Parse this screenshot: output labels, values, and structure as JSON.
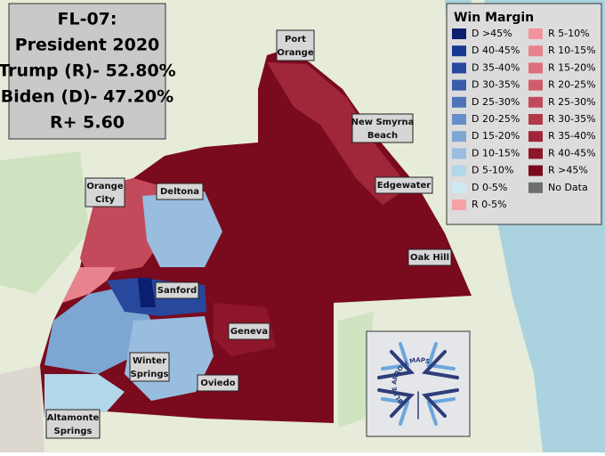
{
  "title_box": {
    "lines": [
      "FL-07:",
      "President 2020",
      "Trump (R)- 52.80%",
      "Biden (D)- 47.20%",
      "R+ 5.60"
    ]
  },
  "legend": {
    "title": "Win Margin",
    "items": [
      {
        "label": "D >45%",
        "color": "#0b1f70"
      },
      {
        "label": "D 40-45%",
        "color": "#183790"
      },
      {
        "label": "D 35-40%",
        "color": "#27489c"
      },
      {
        "label": "D 30-35%",
        "color": "#385ca8"
      },
      {
        "label": "D 25-30%",
        "color": "#4e74b8"
      },
      {
        "label": "D 20-25%",
        "color": "#658dc6"
      },
      {
        "label": "D 15-20%",
        "color": "#7ea6d2"
      },
      {
        "label": "D 10-15%",
        "color": "#98bdde"
      },
      {
        "label": "D 5-10%",
        "color": "#b2d6ea"
      },
      {
        "label": "D 0-5%",
        "color": "#cbeaf3"
      },
      {
        "label": "R 0-5%",
        "color": "#f4a2a6"
      },
      {
        "label": "R 5-10%",
        "color": "#f0939a"
      },
      {
        "label": "R 10-15%",
        "color": "#e8828c"
      },
      {
        "label": "R 15-20%",
        "color": "#de6e7a"
      },
      {
        "label": "R 20-25%",
        "color": "#d05c6a"
      },
      {
        "label": "R 25-30%",
        "color": "#c24a5a"
      },
      {
        "label": "R 30-35%",
        "color": "#b2384a"
      },
      {
        "label": "R 35-40%",
        "color": "#a0263a"
      },
      {
        "label": "R 40-45%",
        "color": "#8e162a"
      },
      {
        "label": "R >45%",
        "color": "#7a0a1e"
      },
      {
        "label": "No Data",
        "color": "#6e6e6e"
      }
    ]
  },
  "places": [
    {
      "lines": [
        "Port",
        "Orange"
      ]
    },
    {
      "lines": [
        "New Smyrna",
        "Beach"
      ]
    },
    {
      "lines": [
        "Edgewater"
      ]
    },
    {
      "lines": [
        "Oak Hill"
      ]
    },
    {
      "lines": [
        "Orange",
        "City"
      ]
    },
    {
      "lines": [
        "Deltona"
      ]
    },
    {
      "lines": [
        "Sanford"
      ]
    },
    {
      "lines": [
        "Geneva"
      ]
    },
    {
      "lines": [
        "Winter",
        "Springs"
      ]
    },
    {
      "lines": [
        "Oviedo"
      ]
    },
    {
      "lines": [
        "Altamonte",
        "Springs"
      ]
    }
  ],
  "logo": {
    "text": "BLUE ARROW MAPS"
  }
}
